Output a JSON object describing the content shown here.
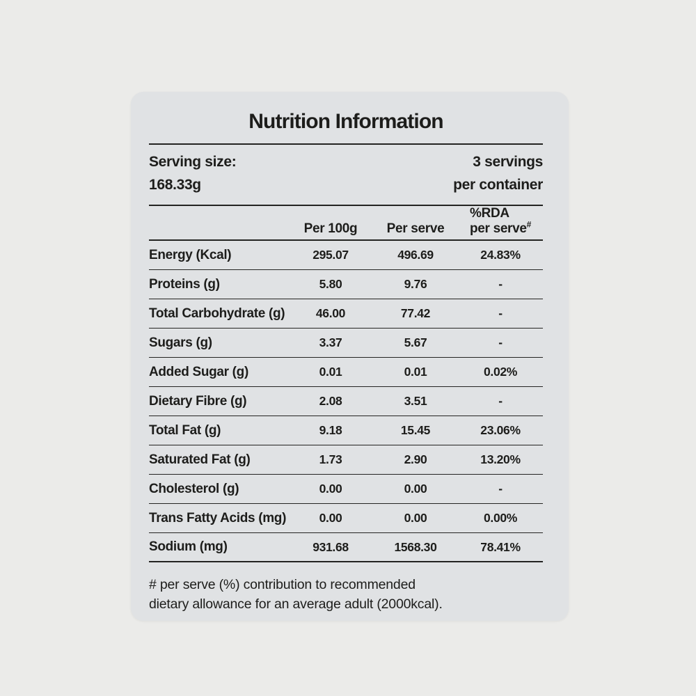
{
  "title": "Nutrition Information",
  "serving": {
    "label": "Serving size:",
    "value": "168.33g",
    "servings_line1": "3 servings",
    "servings_line2": "per container"
  },
  "columns": {
    "per_100g": "Per 100g",
    "per_serve": "Per serve",
    "rda_line1": "%RDA",
    "rda_line2": "per serve",
    "rda_sup": "#"
  },
  "rows": [
    {
      "label": "Energy (Kcal)",
      "per_100g": "295.07",
      "per_serve": "496.69",
      "rda": "24.83%"
    },
    {
      "label": "Proteins (g)",
      "per_100g": "5.80",
      "per_serve": "9.76",
      "rda": "-"
    },
    {
      "label": "Total Carbohydrate (g)",
      "per_100g": "46.00",
      "per_serve": "77.42",
      "rda": "-"
    },
    {
      "label": "Sugars (g)",
      "per_100g": "3.37",
      "per_serve": "5.67",
      "rda": "-"
    },
    {
      "label": "Added Sugar (g)",
      "per_100g": "0.01",
      "per_serve": "0.01",
      "rda": "0.02%"
    },
    {
      "label": "Dietary Fibre (g)",
      "per_100g": "2.08",
      "per_serve": "3.51",
      "rda": "-"
    },
    {
      "label": "Total Fat (g)",
      "per_100g": "9.18",
      "per_serve": "15.45",
      "rda": "23.06%"
    },
    {
      "label": "Saturated Fat (g)",
      "per_100g": "1.73",
      "per_serve": "2.90",
      "rda": "13.20%"
    },
    {
      "label": "Cholesterol (g)",
      "per_100g": "0.00",
      "per_serve": "0.00",
      "rda": "-"
    },
    {
      "label": "Trans Fatty Acids (mg)",
      "per_100g": "0.00",
      "per_serve": "0.00",
      "rda": "0.00%"
    },
    {
      "label": "Sodium (mg)",
      "per_100g": "931.68",
      "per_serve": "1568.30",
      "rda": "78.41%"
    }
  ],
  "footnote": {
    "line1": "# per serve (%) contribution to recommended",
    "line2": "dietary allowance for an average adult (2000kcal)."
  },
  "colors": {
    "page_bg": "#ebebe9",
    "card_bg": "#e0e2e4",
    "text": "#1d1d1b",
    "rule": "#232321"
  }
}
